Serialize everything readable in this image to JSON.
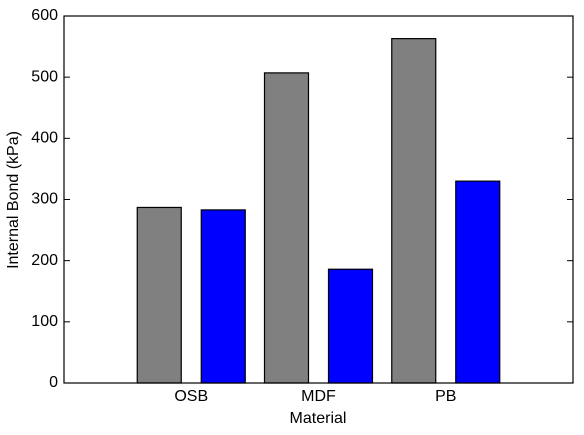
{
  "chart_data": {
    "type": "bar",
    "x_label": "Material",
    "y_label": "Internal Bond (kPa)",
    "categories": [
      "OSB",
      "MDF",
      "PB"
    ],
    "series": [
      {
        "color": "#808080",
        "values": [
          287,
          507,
          563
        ]
      },
      {
        "color": "#0000ff",
        "values": [
          283,
          186,
          330
        ]
      }
    ],
    "ylim": [
      0,
      600
    ],
    "yticks": [
      0,
      100,
      200,
      300,
      400,
      500,
      600
    ]
  }
}
